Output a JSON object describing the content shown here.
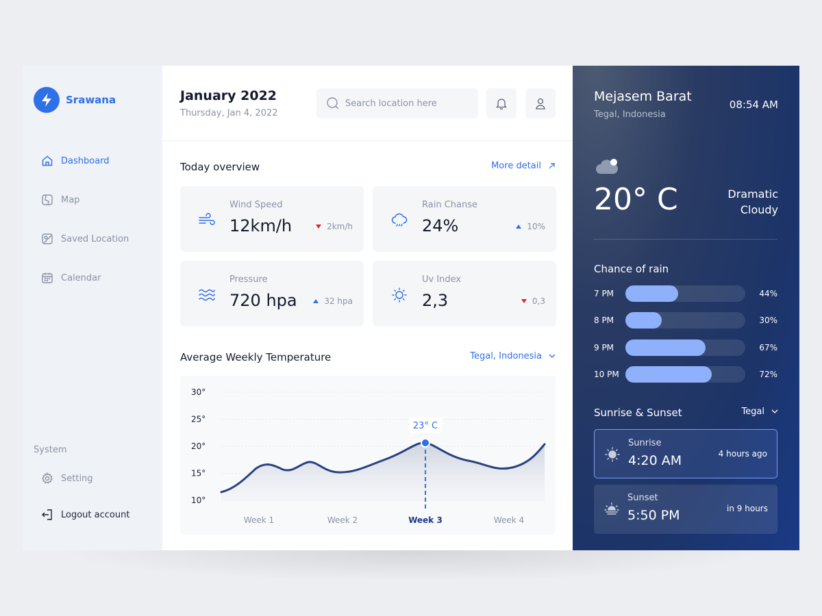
{
  "brand": {
    "name": "Srawana"
  },
  "sidebar": {
    "items": [
      {
        "label": "Dashboard",
        "icon": "home-icon",
        "active": true
      },
      {
        "label": "Map",
        "icon": "map-icon"
      },
      {
        "label": "Saved Location",
        "icon": "saved-location-icon"
      },
      {
        "label": "Calendar",
        "icon": "calendar-icon"
      }
    ],
    "system_label": "System",
    "setting_label": "Setting",
    "logout_label": "Logout account"
  },
  "header": {
    "month": "January 2022",
    "date": "Thursday, Jan 4, 2022",
    "search_placeholder": "Search location here"
  },
  "overview": {
    "title": "Today overview",
    "more_label": "More detail",
    "cards": [
      {
        "label": "Wind Speed",
        "value": "12km/h",
        "delta": "2km/h",
        "trend": "down",
        "icon": "wind-icon"
      },
      {
        "label": "Rain Chanse",
        "value": "24%",
        "delta": "10%",
        "trend": "up",
        "icon": "rain-cloud-icon"
      },
      {
        "label": "Pressure",
        "value": "720 hpa",
        "delta": "32 hpa",
        "trend": "up",
        "icon": "waves-icon"
      },
      {
        "label": "Uv Index",
        "value": "2,3",
        "delta": "0,3",
        "trend": "down",
        "icon": "sun-icon"
      }
    ]
  },
  "weekly": {
    "title": "Average Weekly Temperature",
    "location": "Tegal, Indonesia"
  },
  "chart_data": {
    "type": "area",
    "title": "Average Weekly Temperature",
    "yticks": [
      "30°",
      "25°",
      "20°",
      "15°",
      "10°"
    ],
    "ylim": [
      10,
      30
    ],
    "categories": [
      "Week 1",
      "Week 2",
      "Week 3",
      "Week 4"
    ],
    "highlight": {
      "category": "Week 3",
      "label": "23° C"
    },
    "grid": true,
    "colors": {
      "line": "#28427e",
      "highlight": "#2f6fe8"
    }
  },
  "right_panel": {
    "location": "Mejasem Barat",
    "region": "Tegal, Indonesia",
    "time": "08:54 AM",
    "temperature": "20° C",
    "condition_line1": "Dramatic",
    "condition_line2": "Cloudy",
    "rain_title": "Chance of rain",
    "rain": [
      {
        "time": "7 PM",
        "percent": 44,
        "label": "44%"
      },
      {
        "time": "8 PM",
        "percent": 30,
        "label": "30%"
      },
      {
        "time": "9 PM",
        "percent": 67,
        "label": "67%"
      },
      {
        "time": "10 PM",
        "percent": 72,
        "label": "72%"
      }
    ],
    "sun_title": "Sunrise & Sunset",
    "sun_location": "Tegal",
    "sunrise": {
      "label": "Sunrise",
      "time": "4:20 AM",
      "relative": "4 hours ago"
    },
    "sunset": {
      "label": "Sunset",
      "time": "5:50 PM",
      "relative": "in 9 hours"
    }
  }
}
